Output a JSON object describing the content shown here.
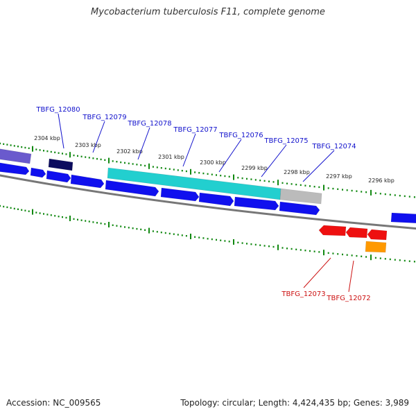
{
  "title": "Mycobacterium tuberculosis F11, complete genome",
  "footer": {
    "accession": "Accession: NC_009565",
    "summary": "Topology: circular; Length: 4,424,435 bp; Genes: 3,989"
  },
  "colors": {
    "forward_cds": "#1010ee",
    "reverse_cds": "#ee1010",
    "highlight": "#22cfcf",
    "gray_feature": "#bbbbbb",
    "purple_feature": "#6a5acd",
    "dark_feature": "#0c0c5e",
    "orange_feature": "#ff9900",
    "tick_green": "#118811",
    "backbone": "#777777",
    "forward_label": "#1010cc",
    "reverse_label": "#cc1010"
  },
  "scale_ticks": [
    "2304 kbp",
    "2303 kbp",
    "2302 kbp",
    "2301 kbp",
    "2300 kbp",
    "2299 kbp",
    "2298 kbp",
    "2297 kbp",
    "2296 kbp"
  ],
  "forward_genes": [
    "TBFG_12080",
    "TBFG_12079",
    "TBFG_12078",
    "TBFG_12077",
    "TBFG_12076",
    "TBFG_12075",
    "TBFG_12074"
  ],
  "reverse_genes": [
    "TBFG_12073",
    "TBFG_12072"
  ]
}
